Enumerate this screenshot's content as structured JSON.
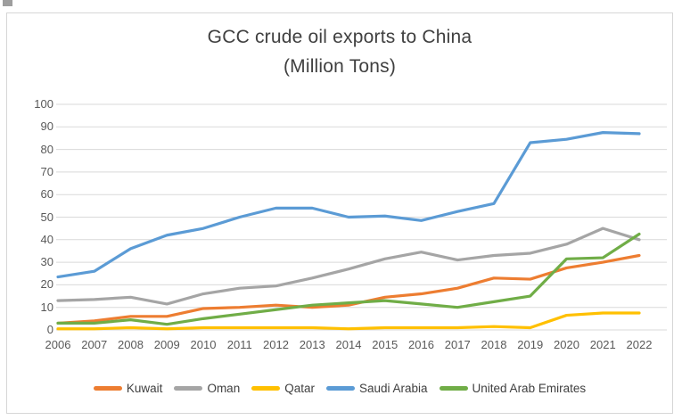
{
  "window": {
    "background": "#FFFFFF",
    "frame_border": "#D6D6D6",
    "corner_artifact_color": "#9E9E9E"
  },
  "chart_data": {
    "type": "line",
    "title": "GCC crude oil exports to China",
    "subtitle": "(Million Tons)",
    "xlabel": "",
    "ylabel": "",
    "categories": [
      "2006",
      "2007",
      "2008",
      "2009",
      "2010",
      "2011",
      "2012",
      "2013",
      "2014",
      "2015",
      "2016",
      "2017",
      "2018",
      "2019",
      "2020",
      "2021",
      "2022"
    ],
    "ylim": [
      0,
      100
    ],
    "yticks": [
      0,
      10,
      20,
      30,
      40,
      50,
      60,
      70,
      80,
      90,
      100
    ],
    "grid": true,
    "legend_position": "bottom",
    "series": [
      {
        "name": "Kuwait",
        "color": "#ED7D31",
        "values": [
          3,
          4,
          6,
          6,
          9.5,
          10,
          11,
          10,
          11,
          14.5,
          16,
          18.5,
          23,
          22.5,
          27.5,
          30,
          33
        ]
      },
      {
        "name": "Oman",
        "color": "#A5A5A5",
        "values": [
          13,
          13.5,
          14.5,
          11.5,
          16,
          18.5,
          19.5,
          23,
          27,
          31.5,
          34.5,
          31,
          33,
          34,
          38,
          45,
          40
        ]
      },
      {
        "name": "Qatar",
        "color": "#FFC000",
        "values": [
          0.5,
          0.5,
          1,
          0.5,
          1,
          1,
          1,
          1,
          0.5,
          1,
          1,
          1,
          1.5,
          1,
          6.5,
          7.5,
          7.5
        ]
      },
      {
        "name": "Saudi Arabia",
        "color": "#5B9BD5",
        "values": [
          23.5,
          26,
          36,
          42,
          45,
          50,
          54,
          54,
          50,
          50.5,
          48.5,
          52.5,
          56,
          83,
          84.5,
          87.5,
          87
        ]
      },
      {
        "name": "United Arab Emirates",
        "color": "#70AD47",
        "values": [
          3,
          3,
          4.5,
          2.5,
          5,
          7,
          9,
          11,
          12,
          13,
          11.5,
          10,
          12.5,
          15,
          31.5,
          32,
          42.5
        ]
      }
    ],
    "colors": {
      "title_text": "#404040",
      "tick_text": "#595959",
      "gridline": "#D9D9D9",
      "plot_background": "#FFFFFF"
    },
    "line_width": 3.2
  }
}
